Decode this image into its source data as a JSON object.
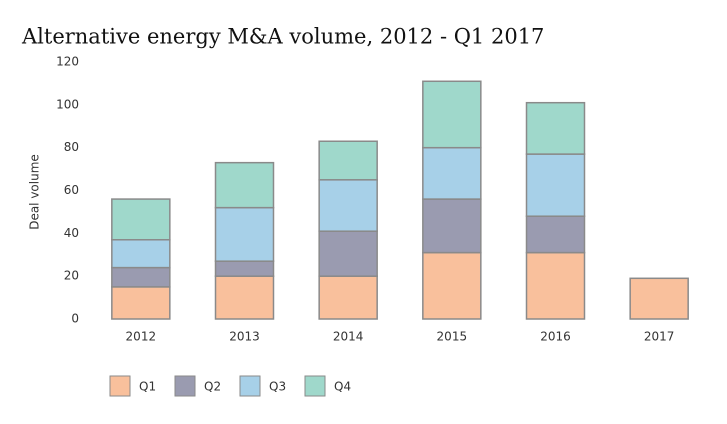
{
  "chart_data": {
    "type": "stacked_bar",
    "title": "Alternative energy M&A volume, 2012 - Q1 2017",
    "y_label": "Deal volume",
    "categories": [
      "2012",
      "2013",
      "2014",
      "2015",
      "2016",
      "2017"
    ],
    "series": [
      {
        "name": "Q1",
        "color": "#f9c09c",
        "values": [
          15,
          20,
          20,
          31,
          31,
          19
        ]
      },
      {
        "name": "Q2",
        "color": "#9a9bb0",
        "values": [
          9,
          7,
          21,
          25,
          17,
          null
        ]
      },
      {
        "name": "Q3",
        "color": "#a7d0e8",
        "values": [
          13,
          25,
          24,
          24,
          29,
          null
        ]
      },
      {
        "name": "Q4",
        "color": "#9fd8cb",
        "values": [
          19,
          21,
          18,
          31,
          24,
          null
        ]
      }
    ],
    "ylim": [
      0,
      120
    ],
    "yticks": [
      0,
      20,
      40,
      60,
      80,
      100,
      120
    ],
    "grid": false
  }
}
